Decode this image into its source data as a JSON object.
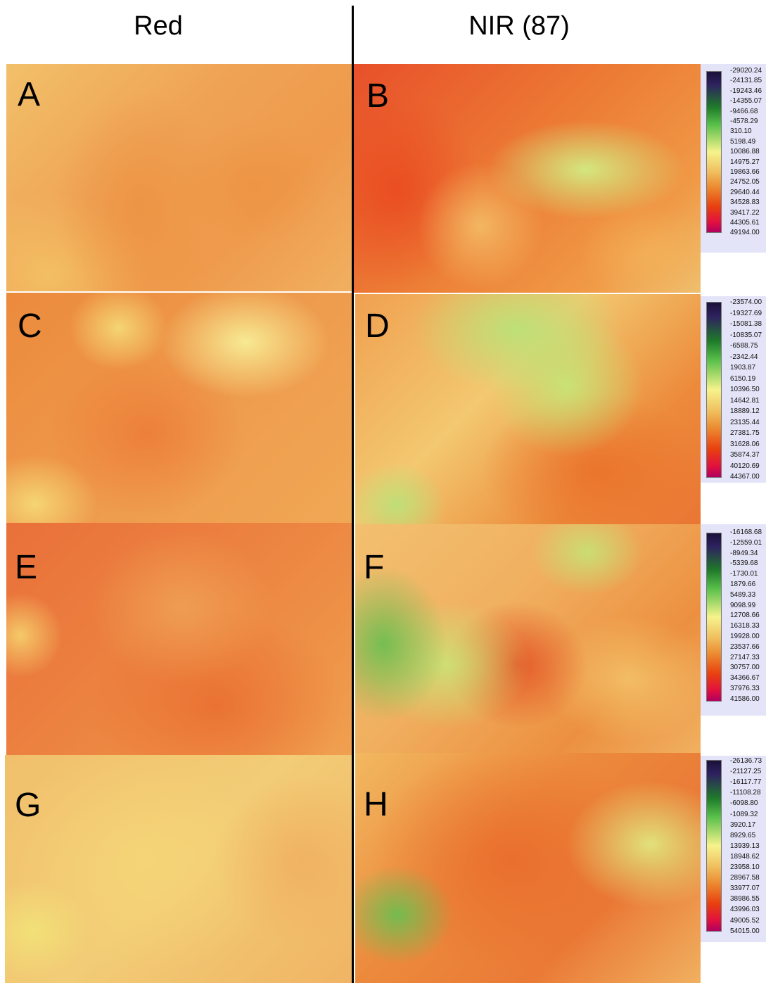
{
  "headers": {
    "left": "Red",
    "right": "NIR (87)"
  },
  "panels": [
    {
      "label": "A"
    },
    {
      "label": "B"
    },
    {
      "label": "C"
    },
    {
      "label": "D"
    },
    {
      "label": "E"
    },
    {
      "label": "F"
    },
    {
      "label": "G"
    },
    {
      "label": "H"
    }
  ],
  "legends": [
    {
      "values": [
        "-29020.24",
        "-24131.85",
        "-19243.46",
        "-14355.07",
        "-9466.68",
        "-4578.29",
        "310.10",
        "5198.49",
        "10086.88",
        "14975.27",
        "19863.66",
        "24752.05",
        "29640.44",
        "34528.83",
        "39417.22",
        "44305.61",
        "49194.00"
      ]
    },
    {
      "values": [
        "-23574.00",
        "-19327.69",
        "-15081.38",
        "-10835.07",
        "-6588.75",
        "-2342.44",
        "1903.87",
        "6150.19",
        "10396.50",
        "14642.81",
        "18889.12",
        "23135.44",
        "27381.75",
        "31628.06",
        "35874.37",
        "40120.69",
        "44367.00"
      ]
    },
    {
      "values": [
        "-16168.68",
        "-12559.01",
        "-8949.34",
        "-5339.68",
        "-1730.01",
        "1879.66",
        "5489.33",
        "9098.99",
        "12708.66",
        "16318.33",
        "19928.00",
        "23537.66",
        "27147.33",
        "30757.00",
        "34366.67",
        "37976.33",
        "41586.00"
      ]
    },
    {
      "values": [
        "-26136.73",
        "-21127.25",
        "-16117.77",
        "-11108.28",
        "-6098.80",
        "-1089.32",
        "3920.17",
        "8929.65",
        "13939.13",
        "18948.62",
        "23958.10",
        "28967.58",
        "33977.07",
        "38986.55",
        "43996.03",
        "49005.52",
        "54015.00"
      ]
    }
  ],
  "colors": {
    "red_base": "#f0a050",
    "nir_base": "#ec7a34",
    "vegetation": "#c8e87a",
    "high": "#e84018",
    "legend_bg": "#e4e4f8"
  }
}
